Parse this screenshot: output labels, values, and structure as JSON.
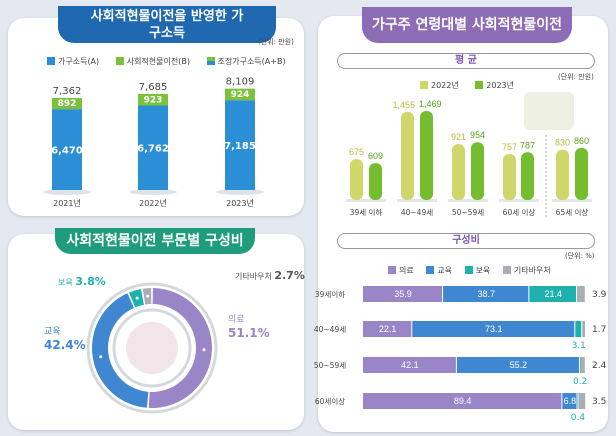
{
  "income_panel": {
    "title": "사회적현물이전을 반영한 가구소득",
    "unit": "(단위: 만원)",
    "colors": {
      "base": "#2b8fd6",
      "transfer": "#7cc13c"
    },
    "chart_data": {
      "type": "bar",
      "stacked": true,
      "categories": [
        "2021년",
        "2022년",
        "2023년"
      ],
      "series": [
        {
          "name": "가구소득(A)",
          "values": [
            6470,
            6762,
            7185
          ]
        },
        {
          "name": "사회적현물이전(B)",
          "values": [
            892,
            923,
            924
          ]
        }
      ],
      "totals_name": "조정가구소득(A+B)",
      "totals": [
        7362,
        7685,
        8109
      ],
      "totals_labels": [
        "7,362",
        "7,685",
        "8,109"
      ],
      "base_labels": [
        "6,470",
        "6,762",
        "7,185"
      ],
      "transfer_labels": [
        "892",
        "923",
        "924"
      ]
    }
  },
  "sector_panel": {
    "title": "사회적현물이전 부문별 구성비",
    "chart_data": {
      "type": "pie",
      "donut": true,
      "slices": [
        {
          "name": "의료",
          "value": 51.1,
          "label": "51.1%",
          "color": "#9a85c6"
        },
        {
          "name": "교육",
          "value": 42.4,
          "label": "42.4%",
          "color": "#3f87d0"
        },
        {
          "name": "보육",
          "value": 3.8,
          "label": "3.8%",
          "color": "#1fb1ad"
        },
        {
          "name": "기타바우처",
          "value": 2.7,
          "label": "2.7%",
          "color": "#a9adb5"
        }
      ]
    }
  },
  "age_panel": {
    "title": "가구주 연령대별 사회적현물이전",
    "average": {
      "heading": "평 균",
      "unit": "(단위: 만원)",
      "chart_data": {
        "type": "bar",
        "categories": [
          "39세 이하",
          "40~49세",
          "50~59세",
          "60세 이상",
          "65세 이상"
        ],
        "series": [
          {
            "name": "2022년",
            "values": [
              675,
              1455,
              921,
              757,
              830
            ],
            "labels": [
              "675",
              "1,455",
              "921",
              "757",
              "830"
            ],
            "color": "#cfd66a"
          },
          {
            "name": "2023년",
            "values": [
              609,
              1469,
              954,
              787,
              860
            ],
            "labels": [
              "609",
              "1,469",
              "954",
              "787",
              "860"
            ],
            "color": "#74bd2f"
          }
        ]
      }
    },
    "composition": {
      "heading": "구성비",
      "unit": "(단위: %)",
      "chart_data": {
        "type": "bar",
        "stacked": true,
        "orientation": "horizontal",
        "categories": [
          "39세이하",
          "40~49세",
          "50~59세",
          "60세이상"
        ],
        "series": [
          {
            "name": "의료",
            "values": [
              35.9,
              22.1,
              42.1,
              89.4
            ],
            "color": "#9a85c6"
          },
          {
            "name": "교육",
            "values": [
              38.7,
              73.1,
              55.2,
              6.8
            ],
            "color": "#3f87d0"
          },
          {
            "name": "보육",
            "values": [
              21.4,
              3.1,
              0.2,
              0.4
            ],
            "color": "#1fb1ad"
          },
          {
            "name": "기타바우처",
            "values": [
              3.9,
              1.7,
              2.4,
              3.5
            ],
            "color": "#a9adb5"
          }
        ]
      }
    }
  }
}
